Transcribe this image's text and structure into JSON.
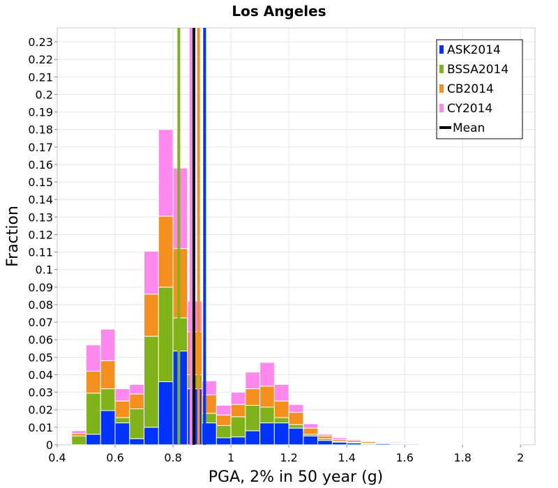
{
  "chart_data": {
    "type": "bar",
    "stacked": true,
    "title": "Los Angeles",
    "xlabel": "PGA, 2% in 50 year (g)",
    "ylabel": "Fraction",
    "xlim": [
      0.4,
      2.05
    ],
    "ylim": [
      0,
      0.238
    ],
    "bin_width": 0.05,
    "grid": true,
    "legend_position": "top-right",
    "x_ticks": [
      "0.4",
      "0.6",
      "0.8",
      "1",
      "1.2",
      "1.4",
      "1.6",
      "1.8",
      "2"
    ],
    "y_ticks": [
      "0",
      "0.01",
      "0.02",
      "0.03",
      "0.04",
      "0.05",
      "0.06",
      "0.07",
      "0.08",
      "0.09",
      "0.1",
      "0.11",
      "0.12",
      "0.13",
      "0.14",
      "0.15",
      "0.16",
      "0.17",
      "0.18",
      "0.19",
      "0.2",
      "0.21",
      "0.22",
      "0.23"
    ],
    "x": [
      0.475,
      0.525,
      0.575,
      0.625,
      0.675,
      0.725,
      0.775,
      0.825,
      0.875,
      0.925,
      0.975,
      1.025,
      1.075,
      1.125,
      1.175,
      1.225,
      1.275,
      1.325,
      1.375,
      1.425,
      1.475,
      1.525,
      1.575,
      1.625,
      1.675,
      1.725,
      1.775,
      1.825,
      1.875,
      1.925,
      1.975,
      2.025
    ],
    "series": [
      {
        "name": "ASK2014",
        "color": "#0033ff",
        "values": [
          0.0,
          0.006,
          0.0195,
          0.0125,
          0.0035,
          0.01,
          0.036,
          0.0535,
          0.032,
          0.0125,
          0.004,
          0.0045,
          0.008,
          0.0125,
          0.0125,
          0.0095,
          0.005,
          0.0025,
          0.0015,
          0.001,
          0.0005,
          0.0007,
          0.0005,
          0.0005,
          0.0003,
          0.0002,
          0.0002,
          0.0002,
          0.0002,
          0.0001,
          0.0001,
          0.0
        ]
      },
      {
        "name": "BSSA2014",
        "color": "#80b31a",
        "values": [
          0.005,
          0.0235,
          0.0125,
          0.003,
          0.017,
          0.052,
          0.054,
          0.019,
          0.008,
          0.0055,
          0.007,
          0.0115,
          0.0145,
          0.009,
          0.003,
          0.002,
          0.001,
          0.001,
          0.0005,
          0.0004,
          0.0005,
          0.0002,
          0.0003,
          0.0002,
          0.0002,
          0.0001,
          0.0001,
          0.0001,
          0.0,
          0.0,
          0.0,
          0.0
        ]
      },
      {
        "name": "CB2014",
        "color": "#f5901e",
        "values": [
          0.0015,
          0.0125,
          0.016,
          0.0095,
          0.0085,
          0.024,
          0.0405,
          0.0395,
          0.0245,
          0.0105,
          0.006,
          0.007,
          0.0095,
          0.012,
          0.0095,
          0.007,
          0.0035,
          0.0015,
          0.001,
          0.001,
          0.0008,
          0.0004,
          0.0004,
          0.0003,
          0.0002,
          0.0002,
          0.0001,
          0.0001,
          0.0001,
          0.0,
          0.0,
          0.0
        ]
      },
      {
        "name": "CY2014",
        "color": "#ff88ee",
        "values": [
          0.0015,
          0.015,
          0.018,
          0.007,
          0.0055,
          0.0245,
          0.0495,
          0.046,
          0.0175,
          0.008,
          0.0055,
          0.007,
          0.0095,
          0.0135,
          0.0095,
          0.0045,
          0.0025,
          0.001,
          0.001,
          0.0006,
          0.0004,
          0.0004,
          0.0005,
          0.0003,
          0.0002,
          0.0002,
          0.0002,
          0.0001,
          0.0001,
          0.0001,
          0.0,
          0.0
        ]
      }
    ],
    "mean_lines": [
      {
        "name": "ASK2014",
        "x": 0.909,
        "color": "#0033ff"
      },
      {
        "name": "BSSA2014",
        "x": 0.82,
        "color": "#80b31a"
      },
      {
        "name": "CB2014",
        "x": 0.888,
        "color": "#f5901e"
      },
      {
        "name": "CY2014",
        "x": 0.862,
        "color": "#ff88ee"
      },
      {
        "name": "Mean",
        "x": 0.872,
        "color": "#000000"
      }
    ],
    "legend": [
      {
        "label": "ASK2014",
        "color": "#0033ff",
        "kind": "box"
      },
      {
        "label": "BSSA2014",
        "color": "#80b31a",
        "kind": "box"
      },
      {
        "label": "CB2014",
        "color": "#f5901e",
        "kind": "box"
      },
      {
        "label": "CY2014",
        "color": "#ff88ee",
        "kind": "box"
      },
      {
        "label": "Mean",
        "color": "#000000",
        "kind": "line"
      }
    ]
  }
}
